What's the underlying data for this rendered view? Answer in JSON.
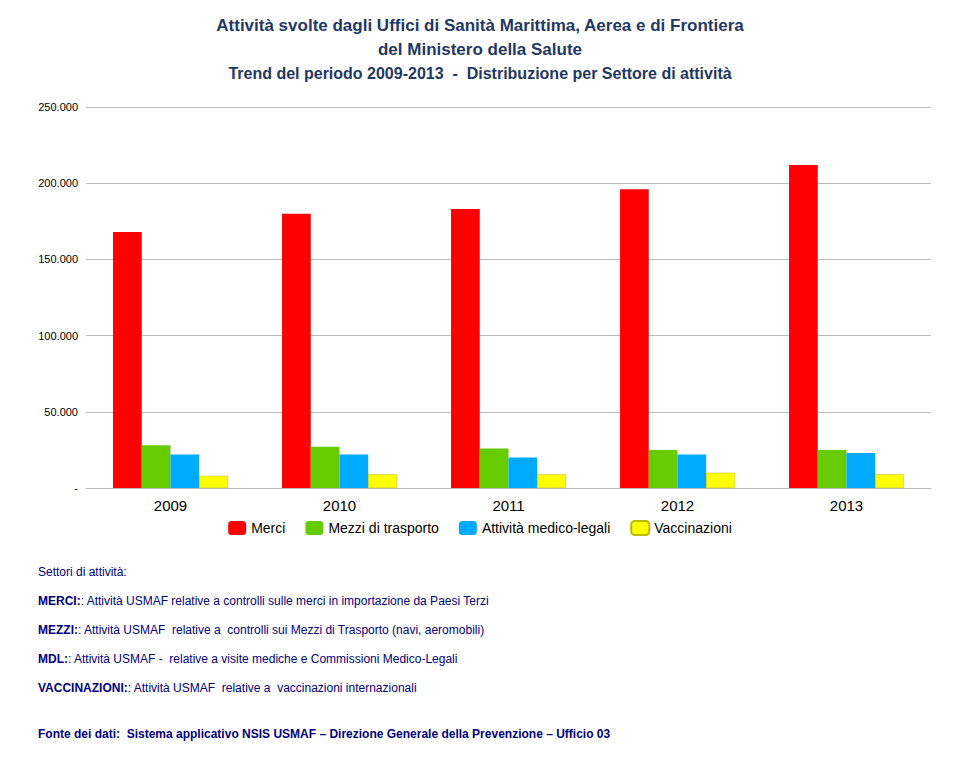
{
  "chart_data": {
    "type": "bar",
    "title": [
      "Attività svolte dagli Uffici di Sanità Marittima, Aerea e di Frontiera",
      "del Ministero della Salute"
    ],
    "subtitle": "Trend del periodo 2009-2013  -  Distribuzione per Settore di attività",
    "title_color": "#1F3864",
    "categories": [
      "2009",
      "2010",
      "2011",
      "2012",
      "2013"
    ],
    "series": [
      {
        "name": "Merci",
        "color": "#FF0000",
        "values": [
          168000,
          180000,
          183000,
          196000,
          212000
        ]
      },
      {
        "name": "Mezzi di trasporto",
        "color": "#66CC00",
        "values": [
          28000,
          27000,
          26000,
          25000,
          25000
        ]
      },
      {
        "name": "Attività medico-legali",
        "color": "#00AAFF",
        "values": [
          22000,
          22000,
          20000,
          22000,
          23000
        ]
      },
      {
        "name": "Vaccinazioni",
        "color": "#FFFF00",
        "values": [
          8000,
          9000,
          9000,
          10000,
          9000
        ]
      }
    ],
    "ylim": [
      0,
      250000
    ],
    "yticks": [
      {
        "value": 0,
        "label": "-"
      },
      {
        "value": 50000,
        "label": "50.000"
      },
      {
        "value": 100000,
        "label": "100.000"
      },
      {
        "value": 150000,
        "label": "150.000"
      },
      {
        "value": 200000,
        "label": "200.000"
      },
      {
        "value": 250000,
        "label": "250.000"
      }
    ],
    "grid": true,
    "legend": "bottom",
    "annotations": [
      {
        "text": "Settori di attività:"
      },
      {
        "bold": "MERCI:",
        "text": ": Attività USMAF relative a controlli sulle merci in importazione da Paesi Terzi"
      },
      {
        "bold": "MEZZI:",
        "text": ": Attività USMAF  relative a  controlli sui Mezzi di Trasporto (navi, aeromobili)"
      },
      {
        "bold": "MDL:",
        "text": ": Attività USMAF -  relative a visite mediche e Commissioni Medico-Legali"
      },
      {
        "bold": "VACCINAZIONI:",
        "text": ": Attività USMAF  relative a  vaccinazioni internazionali"
      }
    ],
    "source": "Fonte dei dati:  Sistema applicativo NSIS USMAF – Direzione Generale della Prevenzione – Ufficio 03",
    "annotation_color": "#000080"
  }
}
